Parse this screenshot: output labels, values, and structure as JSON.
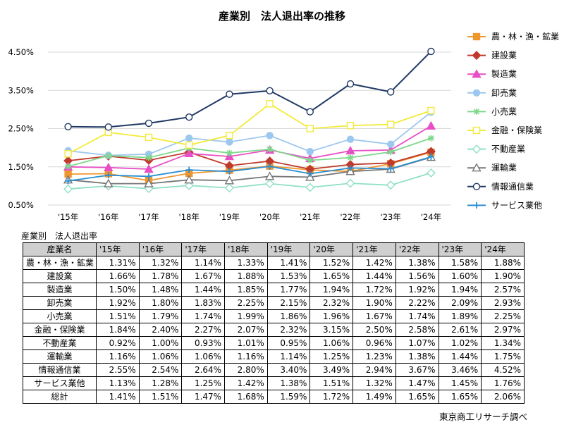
{
  "chart_data": {
    "type": "line",
    "title": "産業別　法人退出率の推移",
    "categories": [
      "'15年",
      "'16年",
      "'17年",
      "'18年",
      "'19年",
      "'20年",
      "'21年",
      "'22年",
      "'23年",
      "'24年"
    ],
    "y_ticks": [
      "0.50%",
      "1.50%",
      "2.50%",
      "3.50%",
      "4.50%"
    ],
    "ylim": [
      0.5,
      4.5
    ],
    "legend_position": "right",
    "grid": "horizontal",
    "series": [
      {
        "name": "農・林・漁・鉱業",
        "color": "#f0962e",
        "marker": "square",
        "values": [
          1.31,
          1.32,
          1.14,
          1.33,
          1.41,
          1.52,
          1.42,
          1.38,
          1.58,
          1.88
        ]
      },
      {
        "name": "建設業",
        "color": "#c0392b",
        "marker": "diamond",
        "values": [
          1.66,
          1.78,
          1.67,
          1.88,
          1.53,
          1.65,
          1.44,
          1.56,
          1.6,
          1.9
        ]
      },
      {
        "name": "製造業",
        "color": "#e84fc6",
        "marker": "triangle",
        "values": [
          1.5,
          1.48,
          1.44,
          1.85,
          1.77,
          1.94,
          1.72,
          1.92,
          1.94,
          2.57
        ]
      },
      {
        "name": "卸売業",
        "color": "#9cc7ee",
        "marker": "circle",
        "values": [
          1.92,
          1.8,
          1.83,
          2.25,
          2.15,
          2.32,
          1.9,
          2.22,
          2.09,
          2.93
        ]
      },
      {
        "name": "小売業",
        "color": "#7ed88a",
        "marker": "star",
        "values": [
          1.51,
          1.79,
          1.74,
          1.99,
          1.86,
          1.96,
          1.67,
          1.74,
          1.89,
          2.25
        ]
      },
      {
        "name": "金融・保険業",
        "color": "#f2ea3a",
        "marker": "open-square",
        "values": [
          1.84,
          2.4,
          2.27,
          2.07,
          2.32,
          3.15,
          2.5,
          2.58,
          2.61,
          2.97
        ]
      },
      {
        "name": "不動産業",
        "color": "#8fe0c6",
        "marker": "open-diamond",
        "values": [
          0.92,
          1.0,
          0.93,
          1.01,
          0.95,
          1.06,
          0.96,
          1.07,
          1.02,
          1.34
        ]
      },
      {
        "name": "運輸業",
        "color": "#777777",
        "marker": "open-triangle",
        "values": [
          1.16,
          1.06,
          1.06,
          1.16,
          1.14,
          1.25,
          1.23,
          1.38,
          1.44,
          1.75
        ]
      },
      {
        "name": "情報通信業",
        "color": "#1f3864",
        "marker": "open-circle",
        "values": [
          2.55,
          2.54,
          2.64,
          2.8,
          3.4,
          3.49,
          2.94,
          3.67,
          3.46,
          4.52
        ]
      },
      {
        "name": "サービス業他",
        "color": "#2a8fd1",
        "marker": "plus",
        "values": [
          1.13,
          1.28,
          1.25,
          1.42,
          1.38,
          1.51,
          1.32,
          1.47,
          1.45,
          1.76
        ]
      }
    ]
  },
  "table": {
    "caption": "産業別　法人退出率",
    "header_name": "産業名",
    "years": [
      "'15年",
      "'16年",
      "'17年",
      "'18年",
      "'19年",
      "'20年",
      "'21年",
      "'22年",
      "'23年",
      "'24年"
    ],
    "rows": [
      {
        "name": "農・林・漁・鉱業",
        "values": [
          "1.31%",
          "1.32%",
          "1.14%",
          "1.33%",
          "1.41%",
          "1.52%",
          "1.42%",
          "1.38%",
          "1.58%",
          "1.88%"
        ]
      },
      {
        "name": "建設業",
        "values": [
          "1.66%",
          "1.78%",
          "1.67%",
          "1.88%",
          "1.53%",
          "1.65%",
          "1.44%",
          "1.56%",
          "1.60%",
          "1.90%"
        ]
      },
      {
        "name": "製造業",
        "values": [
          "1.50%",
          "1.48%",
          "1.44%",
          "1.85%",
          "1.77%",
          "1.94%",
          "1.72%",
          "1.92%",
          "1.94%",
          "2.57%"
        ]
      },
      {
        "name": "卸売業",
        "values": [
          "1.92%",
          "1.80%",
          "1.83%",
          "2.25%",
          "2.15%",
          "2.32%",
          "1.90%",
          "2.22%",
          "2.09%",
          "2.93%"
        ]
      },
      {
        "name": "小売業",
        "values": [
          "1.51%",
          "1.79%",
          "1.74%",
          "1.99%",
          "1.86%",
          "1.96%",
          "1.67%",
          "1.74%",
          "1.89%",
          "2.25%"
        ]
      },
      {
        "name": "金融・保険業",
        "values": [
          "1.84%",
          "2.40%",
          "2.27%",
          "2.07%",
          "2.32%",
          "3.15%",
          "2.50%",
          "2.58%",
          "2.61%",
          "2.97%"
        ]
      },
      {
        "name": "不動産業",
        "values": [
          "0.92%",
          "1.00%",
          "0.93%",
          "1.01%",
          "0.95%",
          "1.06%",
          "0.96%",
          "1.07%",
          "1.02%",
          "1.34%"
        ]
      },
      {
        "name": "運輸業",
        "values": [
          "1.16%",
          "1.06%",
          "1.06%",
          "1.16%",
          "1.14%",
          "1.25%",
          "1.23%",
          "1.38%",
          "1.44%",
          "1.75%"
        ]
      },
      {
        "name": "情報通信業",
        "values": [
          "2.55%",
          "2.54%",
          "2.64%",
          "2.80%",
          "3.40%",
          "3.49%",
          "2.94%",
          "3.67%",
          "3.46%",
          "4.52%"
        ]
      },
      {
        "name": "サービス業他",
        "values": [
          "1.13%",
          "1.28%",
          "1.25%",
          "1.42%",
          "1.38%",
          "1.51%",
          "1.32%",
          "1.47%",
          "1.45%",
          "1.76%"
        ]
      },
      {
        "name": "総計",
        "values": [
          "1.41%",
          "1.51%",
          "1.47%",
          "1.68%",
          "1.59%",
          "1.72%",
          "1.49%",
          "1.65%",
          "1.65%",
          "2.06%"
        ]
      }
    ]
  },
  "source": "東京商工リサーチ調べ"
}
